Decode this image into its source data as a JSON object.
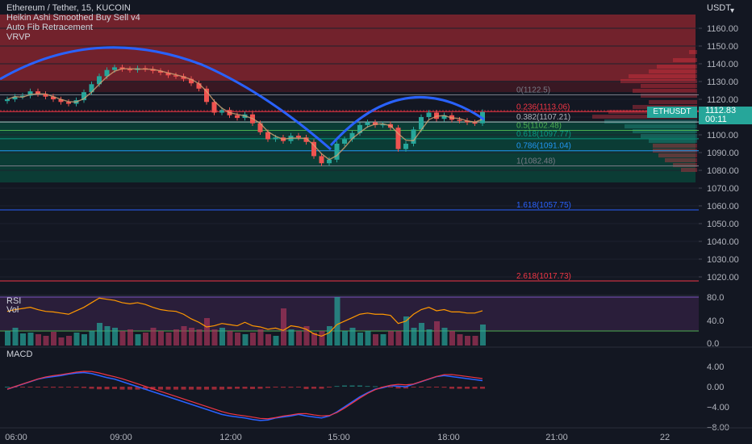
{
  "header": {
    "symbol_line": "Ethereum / Tether, 15, KUCOIN",
    "indicators": [
      "Heikin Ashi Smoothed Buy Sell v4",
      "Auto Fib Retracement",
      "VRVP"
    ]
  },
  "price_axis": {
    "currency": "USDT",
    "ticks": [
      "1160.00",
      "1150.00",
      "1140.00",
      "1130.00",
      "1120.00",
      "1110.00",
      "1100.00",
      "1090.00",
      "1080.00",
      "1070.00",
      "1060.00",
      "1050.00",
      "1040.00",
      "1030.00",
      "1020.00"
    ],
    "last_price": "1112.83",
    "countdown": "00:11",
    "symbol_badge": "ETHUSDT"
  },
  "fib_levels": [
    {
      "label": "0(1122.5)",
      "value": 1122.5,
      "color": "#787b86"
    },
    {
      "label": "0.236(1113.06)",
      "value": 1113.06,
      "color": "#f23645"
    },
    {
      "label": "0.382(1107.21)",
      "value": 1107.21,
      "color": "#b2b5be"
    },
    {
      "label": "0.5(1102.48)",
      "value": 1102.48,
      "color": "#4caf50"
    },
    {
      "label": "0.618(1097.77)",
      "value": 1097.77,
      "color": "#089981"
    },
    {
      "label": "0.786(1091.04)",
      "value": 1091.04,
      "color": "#2196f3"
    },
    {
      "label": "1(1082.48)",
      "value": 1082.48,
      "color": "#787b86"
    },
    {
      "label": "1.618(1057.75)",
      "value": 1057.75,
      "color": "#2962ff"
    },
    {
      "label": "2.618(1017.73)",
      "value": 1017.73,
      "color": "#f23645"
    }
  ],
  "rsi_pane": {
    "label": "RSI",
    "vol_label": "Vol",
    "ticks": [
      "80.0",
      "40.0",
      "0.0"
    ],
    "colors": {
      "line": "#ff9800",
      "band": "#7e57c2"
    }
  },
  "macd_pane": {
    "label": "MACD",
    "ticks": [
      "4.00",
      "0.00",
      "−4.00",
      "−8.00"
    ],
    "colors": {
      "macd": "#2962ff",
      "signal": "#f23645"
    }
  },
  "time_axis": {
    "ticks": [
      "06:00",
      "09:00",
      "12:00",
      "15:00",
      "18:00",
      "21:00",
      "22"
    ]
  },
  "colors": {
    "background": "#131722",
    "up": "#26a69a",
    "down": "#ef5350",
    "arc": "#2962ff",
    "red_zone": "#8b2530",
    "green_zone": "#0a4a3c"
  },
  "chart_data": {
    "type": "candlestick",
    "title": "Ethereum / Tether, 15, KUCOIN",
    "ylim": [
      1012,
      1170
    ],
    "close": [
      1120.0,
      1121.5,
      1122.0,
      1124.5,
      1123.0,
      1121.5,
      1120.0,
      1118.5,
      1117.5,
      1119.5,
      1124.0,
      1128.5,
      1133.0,
      1136.5,
      1138.0,
      1137.0,
      1136.5,
      1137.5,
      1137.0,
      1136.0,
      1135.0,
      1133.5,
      1133.0,
      1131.5,
      1129.0,
      1126.0,
      1118.5,
      1112.5,
      1114.0,
      1111.0,
      1109.5,
      1111.5,
      1106.5,
      1101.5,
      1097.5,
      1098.5,
      1096.5,
      1099.5,
      1098.5,
      1096.0,
      1088.0,
      1084.0,
      1086.0,
      1095.0,
      1097.5,
      1101.0,
      1105.5,
      1107.0,
      1105.5,
      1106.0,
      1104.0,
      1092.0,
      1095.0,
      1103.0,
      1110.0,
      1112.5,
      1109.0,
      1111.0,
      1108.5,
      1108.0,
      1107.0,
      1106.5,
      1112.8
    ]
  }
}
